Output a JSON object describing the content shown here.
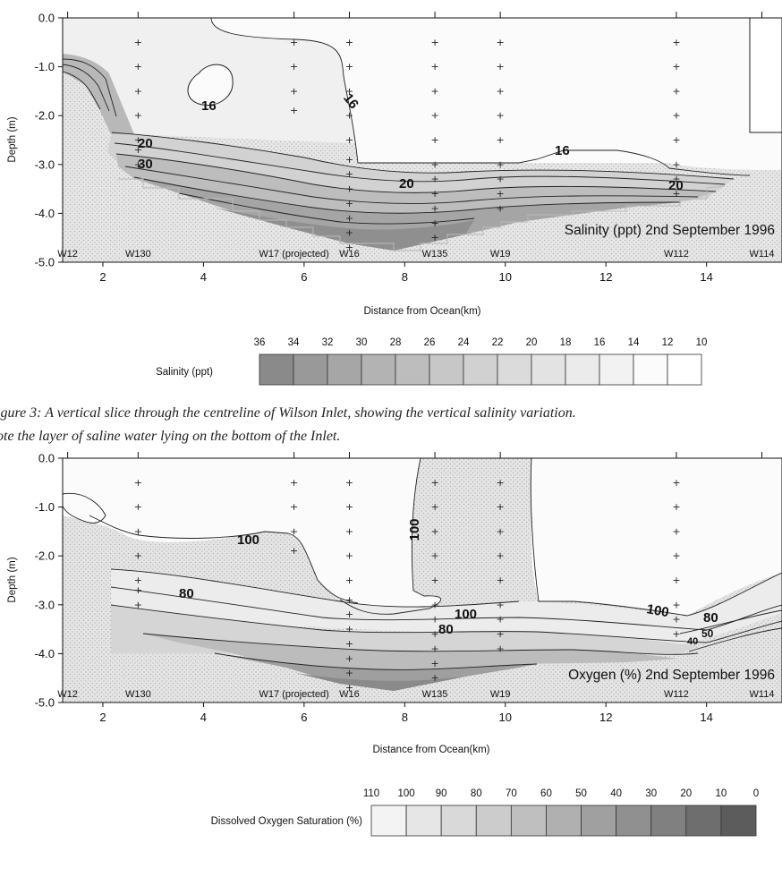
{
  "caption": {
    "line1": "igure 3:  A vertical slice through the centreline of Wilson Inlet, showing the vertical salinity variation.",
    "line2": "ote the layer of saline water lying on the bottom of the Inlet."
  },
  "chart_data": [
    {
      "type": "contour",
      "annotation": "Salinity (ppt) 2nd September 1996",
      "xlabel": "Distance from Ocean(km)",
      "ylabel": "Depth (m)",
      "xlim": [
        1.2,
        15.5
      ],
      "ylim": [
        -5.0,
        0.0
      ],
      "x_ticks": [
        2,
        4,
        6,
        8,
        10,
        12,
        14
      ],
      "y_ticks": [
        0.0,
        -1.0,
        -2.0,
        -3.0,
        -4.0,
        -5.0
      ],
      "y_tick_labels": [
        "0.0",
        "-1.0",
        "-2.0",
        "-3.0",
        "-4.0",
        "-5.0"
      ],
      "contour_labels": [
        "16",
        "16",
        "16",
        "20",
        "20",
        "20",
        "30"
      ],
      "stations": [
        {
          "name": "W12",
          "x": 1.3
        },
        {
          "name": "W130",
          "x": 2.7
        },
        {
          "name": "W17 (projected)",
          "x": 5.8
        },
        {
          "name": "W16",
          "x": 6.9
        },
        {
          "name": "W135",
          "x": 8.6
        },
        {
          "name": "W19",
          "x": 9.9
        },
        {
          "name": "W112",
          "x": 13.4
        },
        {
          "name": "W114",
          "x": 15.1
        }
      ],
      "sample_depths": [
        {
          "x": 2.7,
          "depths": [
            -0.5,
            -1.0,
            -1.5,
            -2.0,
            -2.5,
            -2.7,
            -3.0
          ]
        },
        {
          "x": 5.8,
          "depths": [
            -0.5,
            -1.0,
            -1.5,
            -1.9
          ]
        },
        {
          "x": 6.9,
          "depths": [
            -0.5,
            -1.0,
            -1.5,
            -2.0,
            -2.5,
            -2.9,
            -3.2,
            -3.5,
            -3.8,
            -4.1,
            -4.4,
            -4.7
          ]
        },
        {
          "x": 8.6,
          "depths": [
            -0.5,
            -1.0,
            -1.5,
            -2.0,
            -2.5,
            -3.0,
            -3.3,
            -3.6,
            -3.9,
            -4.2,
            -4.5
          ]
        },
        {
          "x": 9.9,
          "depths": [
            -0.5,
            -1.0,
            -1.5,
            -2.0,
            -2.5,
            -3.0,
            -3.3,
            -3.6,
            -3.9
          ]
        },
        {
          "x": 13.4,
          "depths": [
            -0.5,
            -1.0,
            -1.5,
            -2.0,
            -2.5,
            -3.0,
            -3.3,
            -3.6
          ]
        }
      ],
      "legend": {
        "label": "Salinity (ppt)",
        "values": [
          "36",
          "34",
          "32",
          "30",
          "28",
          "26",
          "24",
          "22",
          "20",
          "18",
          "16",
          "14",
          "12",
          "10"
        ]
      }
    },
    {
      "type": "contour",
      "annotation": "Oxygen (%) 2nd September 1996",
      "xlabel": "Distance from Ocean(km)",
      "ylabel": "Depth (m)",
      "xlim": [
        1.2,
        15.5
      ],
      "ylim": [
        -5.0,
        0.0
      ],
      "x_ticks": [
        2,
        4,
        6,
        8,
        10,
        12,
        14
      ],
      "y_ticks": [
        0.0,
        -1.0,
        -2.0,
        -3.0,
        -4.0,
        -5.0
      ],
      "y_tick_labels": [
        "0.0",
        "-1.0",
        "-2.0",
        "-3.0",
        "-4.0",
        "-5.0"
      ],
      "contour_labels": [
        "100",
        "100",
        "100",
        "100",
        "80",
        "80",
        "80",
        "50",
        "40"
      ],
      "stations": [
        {
          "name": "W12",
          "x": 1.3
        },
        {
          "name": "W130",
          "x": 2.7
        },
        {
          "name": "W17 (projected)",
          "x": 5.8
        },
        {
          "name": "W16",
          "x": 6.9
        },
        {
          "name": "W135",
          "x": 8.6
        },
        {
          "name": "W19",
          "x": 9.9
        },
        {
          "name": "W112",
          "x": 13.4
        },
        {
          "name": "W114",
          "x": 15.1
        }
      ],
      "sample_depths": [
        {
          "x": 2.7,
          "depths": [
            -0.5,
            -1.0,
            -1.5,
            -2.0,
            -2.5,
            -2.7,
            -3.0
          ]
        },
        {
          "x": 5.8,
          "depths": [
            -0.5,
            -1.0,
            -1.5,
            -1.9
          ]
        },
        {
          "x": 6.9,
          "depths": [
            -0.5,
            -1.0,
            -1.5,
            -2.0,
            -2.5,
            -2.9,
            -3.2,
            -3.5,
            -3.8,
            -4.1,
            -4.4,
            -4.7
          ]
        },
        {
          "x": 8.6,
          "depths": [
            -0.5,
            -1.0,
            -1.5,
            -2.0,
            -2.5,
            -3.0,
            -3.3,
            -3.6,
            -3.9,
            -4.2,
            -4.5
          ]
        },
        {
          "x": 9.9,
          "depths": [
            -0.5,
            -1.0,
            -1.5,
            -2.0,
            -2.5,
            -3.0,
            -3.3,
            -3.6,
            -3.9
          ]
        },
        {
          "x": 13.4,
          "depths": [
            -0.5,
            -1.0,
            -1.5,
            -2.0,
            -2.5,
            -3.0,
            -3.3,
            -3.6
          ]
        }
      ],
      "legend": {
        "label": "Dissolved Oxygen Saturation (%)",
        "values": [
          "110",
          "100",
          "90",
          "80",
          "70",
          "60",
          "50",
          "40",
          "30",
          "20",
          "10",
          "0"
        ]
      }
    }
  ]
}
